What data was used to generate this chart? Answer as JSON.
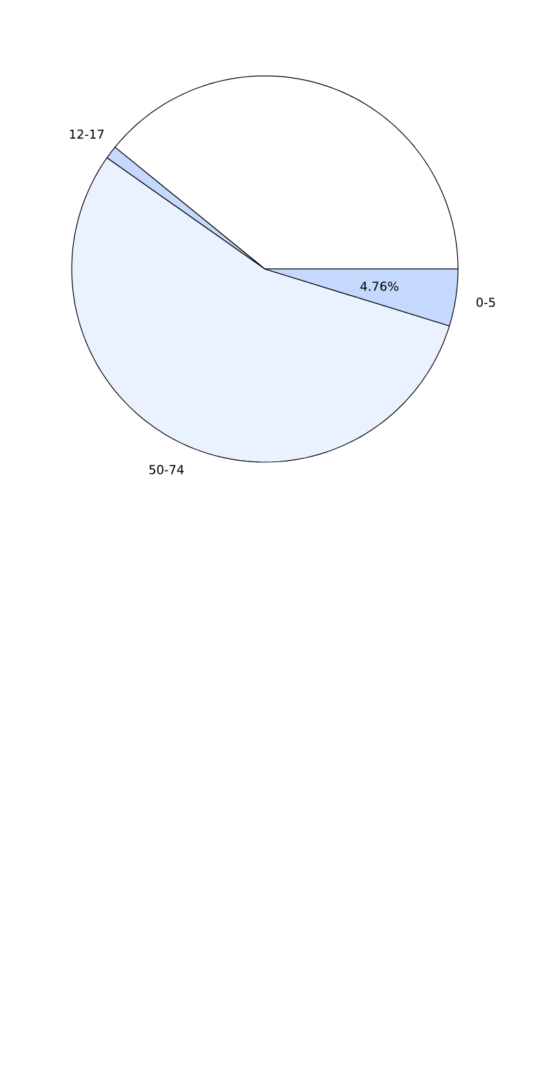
{
  "chart_data": {
    "type": "pie",
    "categories": [
      null,
      "12-17",
      "50-74",
      "0-5"
    ],
    "values": [
      39.14,
      1.1,
      55.0,
      4.76
    ],
    "colors": [
      "#ffffff",
      "#c5d9ff",
      "#ebf2ff",
      "#c5d9ff"
    ],
    "value_labels": [
      null,
      null,
      null,
      "4.76%"
    ]
  }
}
